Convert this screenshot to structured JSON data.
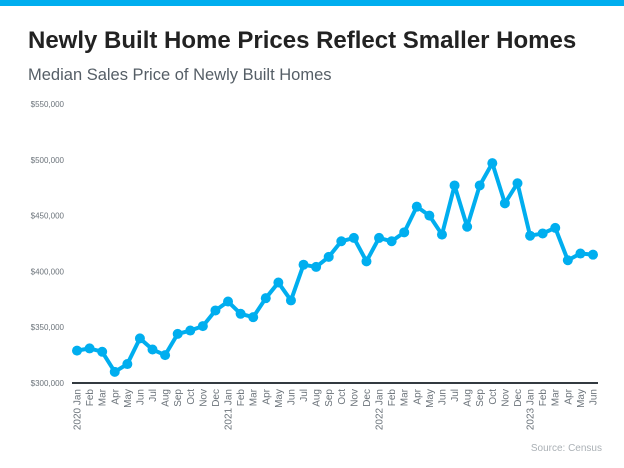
{
  "colors": {
    "accent": "#00aeef",
    "axis": "#333a40",
    "tick_text": "#6b737a"
  },
  "chart_data": {
    "type": "line",
    "title": "Newly Built Home Prices Reflect Smaller Homes",
    "subtitle": "Median Sales Price of Newly Built Homes",
    "xlabel": "",
    "ylabel": "",
    "ylim": [
      300000,
      550000
    ],
    "yticks": [
      300000,
      350000,
      400000,
      450000,
      500000,
      550000
    ],
    "ytick_labels": [
      "$300,000",
      "$350,000",
      "$400,000",
      "$450,000",
      "$500,000",
      "$550,000"
    ],
    "grid": false,
    "categories": [
      "2020 Jan",
      "Feb",
      "Mar",
      "Apr",
      "May",
      "Jun",
      "Jul",
      "Aug",
      "Sep",
      "Oct",
      "Nov",
      "Dec",
      "2021 Jan",
      "Feb",
      "Mar",
      "Apr",
      "May",
      "Jun",
      "Jul",
      "Aug",
      "Sep",
      "Oct",
      "Nov",
      "Dec",
      "2022 Jan",
      "Feb",
      "Mar",
      "Apr",
      "May",
      "Jun",
      "Jul",
      "Aug",
      "Sep",
      "Oct",
      "Nov",
      "Dec",
      "2023 Jan",
      "Feb",
      "Mar",
      "Apr",
      "May",
      "Jun"
    ],
    "series": [
      {
        "name": "Median Sales Price",
        "values": [
          329000,
          331000,
          328000,
          310000,
          317000,
          340000,
          330000,
          325000,
          344000,
          347000,
          351000,
          365000,
          373000,
          362000,
          359000,
          376000,
          390000,
          374000,
          406000,
          404000,
          413000,
          427000,
          430000,
          409000,
          430000,
          427000,
          435000,
          458000,
          450000,
          433000,
          477000,
          440000,
          477000,
          497000,
          461000,
          479000,
          432000,
          434000,
          439000,
          410000,
          416000,
          415000
        ]
      }
    ],
    "source": "Source: Census"
  }
}
